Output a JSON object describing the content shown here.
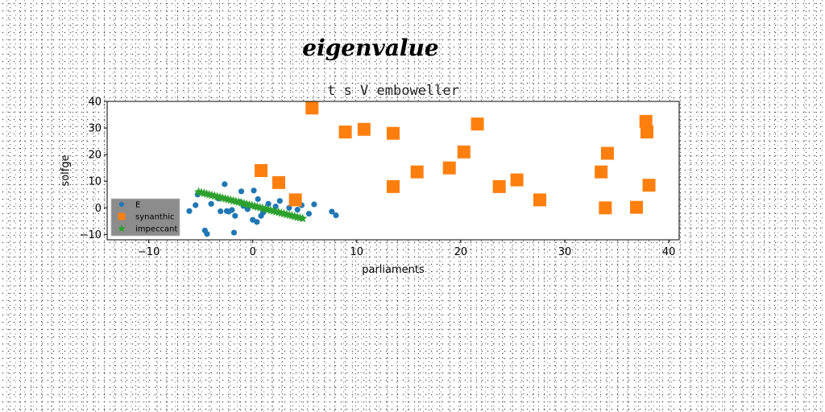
{
  "chart_data": {
    "type": "scatter",
    "suptitle": "eigenvalue",
    "title": "t s V emboweller",
    "xlabel": "parliaments",
    "ylabel": "solfge",
    "xlim": [
      -14,
      41
    ],
    "ylim": [
      -12,
      40
    ],
    "xticks": [
      -10,
      0,
      10,
      20,
      30,
      40
    ],
    "yticks": [
      -10,
      0,
      10,
      20,
      30,
      40
    ],
    "xtick_labels": [
      "−10",
      "0",
      "10",
      "20",
      "30",
      "40"
    ],
    "ytick_labels": [
      "−10",
      "0",
      "10",
      "20",
      "30",
      "40"
    ],
    "grid": false,
    "legend": "lower-left",
    "series": [
      {
        "name": "E",
        "marker": "circle",
        "color": "#1f77b4",
        "points": [
          [
            -6.1,
            -1.2
          ],
          [
            -5.5,
            1.0
          ],
          [
            -5.3,
            5.0
          ],
          [
            -4.6,
            -8.5
          ],
          [
            -4.4,
            -9.8
          ],
          [
            -4.0,
            1.5
          ],
          [
            -3.3,
            3.5
          ],
          [
            -3.1,
            -1.3
          ],
          [
            -2.7,
            8.9
          ],
          [
            -2.5,
            -1.2
          ],
          [
            -2.3,
            -1.4
          ],
          [
            -2.0,
            -0.8
          ],
          [
            -1.8,
            -9.3
          ],
          [
            -1.7,
            -3.0
          ],
          [
            -1.2,
            2.2
          ],
          [
            -1.1,
            6.2
          ],
          [
            -0.9,
            0.7
          ],
          [
            -0.5,
            -0.5
          ],
          [
            0.0,
            -4.5
          ],
          [
            0.1,
            6.5
          ],
          [
            0.3,
            0.4
          ],
          [
            0.4,
            -5.3
          ],
          [
            0.5,
            3.3
          ],
          [
            0.8,
            -3.0
          ],
          [
            1.0,
            -1.8
          ],
          [
            1.5,
            1.5
          ],
          [
            2.2,
            0.5
          ],
          [
            2.6,
            2.6
          ],
          [
            3.5,
            0.0
          ],
          [
            4.3,
            -0.7
          ],
          [
            4.7,
            1.0
          ],
          [
            5.4,
            -2.2
          ],
          [
            5.9,
            1.3
          ],
          [
            7.6,
            -1.4
          ],
          [
            8.0,
            -2.8
          ]
        ]
      },
      {
        "name": "synanthic",
        "marker": "square",
        "color": "#ff7f0e",
        "points": [
          [
            0.8,
            14.0
          ],
          [
            2.5,
            9.5
          ],
          [
            4.1,
            3.0
          ],
          [
            5.7,
            37.5
          ],
          [
            8.9,
            28.5
          ],
          [
            10.7,
            29.5
          ],
          [
            13.5,
            28.0
          ],
          [
            13.5,
            8.0
          ],
          [
            15.8,
            13.5
          ],
          [
            18.9,
            15.0
          ],
          [
            20.3,
            21.0
          ],
          [
            21.6,
            31.5
          ],
          [
            23.7,
            8.0
          ],
          [
            25.4,
            10.5
          ],
          [
            27.6,
            3.0
          ],
          [
            33.5,
            13.5
          ],
          [
            33.9,
            0.0
          ],
          [
            34.1,
            20.5
          ],
          [
            36.9,
            0.2
          ],
          [
            37.8,
            32.5
          ],
          [
            37.9,
            28.5
          ],
          [
            38.1,
            8.5
          ]
        ]
      },
      {
        "name": "impeccant",
        "marker": "star",
        "color": "#2ca02c",
        "line": {
          "x0": -5.2,
          "y0": 6.0,
          "x1": 4.8,
          "y1": -4.0,
          "count": 40
        }
      }
    ]
  }
}
